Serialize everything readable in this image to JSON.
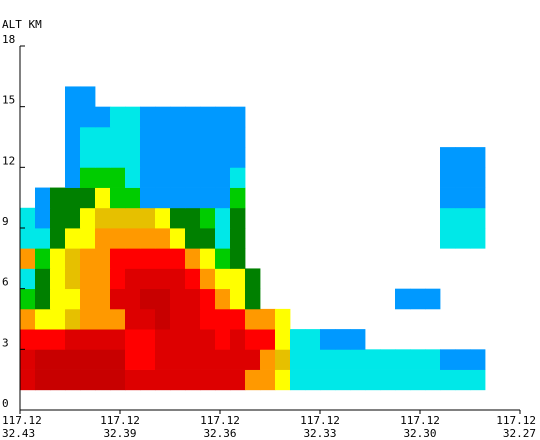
{
  "chart_data": {
    "type": "heatmap",
    "title": "",
    "ylabel": "ALT KM",
    "xlabel": "",
    "ylim": [
      0,
      18
    ],
    "xlim": [
      0,
      5
    ],
    "grid": false,
    "y_ticks": [
      {
        "value": 0,
        "label": "0"
      },
      {
        "value": 3,
        "label": "3"
      },
      {
        "value": 6,
        "label": "6"
      },
      {
        "value": 9,
        "label": "9"
      },
      {
        "value": 12,
        "label": "12"
      },
      {
        "value": 15,
        "label": "15"
      },
      {
        "value": 18,
        "label": "18"
      }
    ],
    "x_ticks": [
      {
        "value": 0,
        "lon": "117.12",
        "lat": "32.43"
      },
      {
        "value": 1,
        "lon": "117.12",
        "lat": "32.39"
      },
      {
        "value": 2,
        "lon": "117.12",
        "lat": "32.36"
      },
      {
        "value": 3,
        "lon": "117.12",
        "lat": "32.33"
      },
      {
        "value": 4,
        "lon": "117.12",
        "lat": "32.30"
      },
      {
        "value": 5,
        "lon": "117.12",
        "lat": "32.27"
      }
    ],
    "colors": {
      "b": "#0099ff",
      "c": "#00e8e8",
      "g": "#00cc00",
      "d": "#008000",
      "y": "#ffff00",
      "o": "#e6c000",
      "n": "#ff9900",
      "r": "#ff0000",
      "k": "#dd0000",
      "m": "#c80000",
      "x": "#b00000"
    },
    "column_centers": [
      0.075,
      0.225,
      0.375,
      0.525,
      0.675,
      0.825,
      0.975,
      1.125,
      1.275,
      1.425,
      1.575,
      1.725,
      1.875,
      2.025,
      2.175,
      2.325,
      2.475,
      2.625,
      2.775,
      2.925,
      3.075,
      3.225,
      3.375,
      3.525,
      3.675,
      3.825,
      3.975,
      4.125,
      4.275,
      4.425,
      4.575,
      4.725
    ],
    "row_centers": [
      1.5,
      2.5,
      3.5,
      4.5,
      5.5,
      6.5,
      7.5,
      8.5,
      9.5,
      10.5,
      11.5,
      12.5,
      13.5,
      14.5,
      15.5
    ],
    "rows_bottom_up": [
      "kmmmmmmkkkkkkkknnyccccccccccccc.",
      "kmmmmmmrrkkkkkkknoccccccccccbbb.",
      "rrrkkkkrrkkkkrkrryccbbb.........",
      "nyyonnnkkmkkrrrnny..............",
      "gdyynnkkmmkkrnyd.........bbb....",
      "cdyonnrkkkkrnyyd................",
      "ngyonnrrrrrnygd.................",
      "ccdyynnnnnyddcd.............ccc.",
      "cbddyooooyddgcd.............ccc.",
      ".bdddyggbbbbbbg.............bbb.",
      "...bgggcbbbbbbc.............bbb.",
      "...bccccbbbbbbb.............bbb.",
      "...bccccbbbbbbb.................",
      "...bbbccbbbbbbb.................",
      "...bb..........................."
    ]
  }
}
